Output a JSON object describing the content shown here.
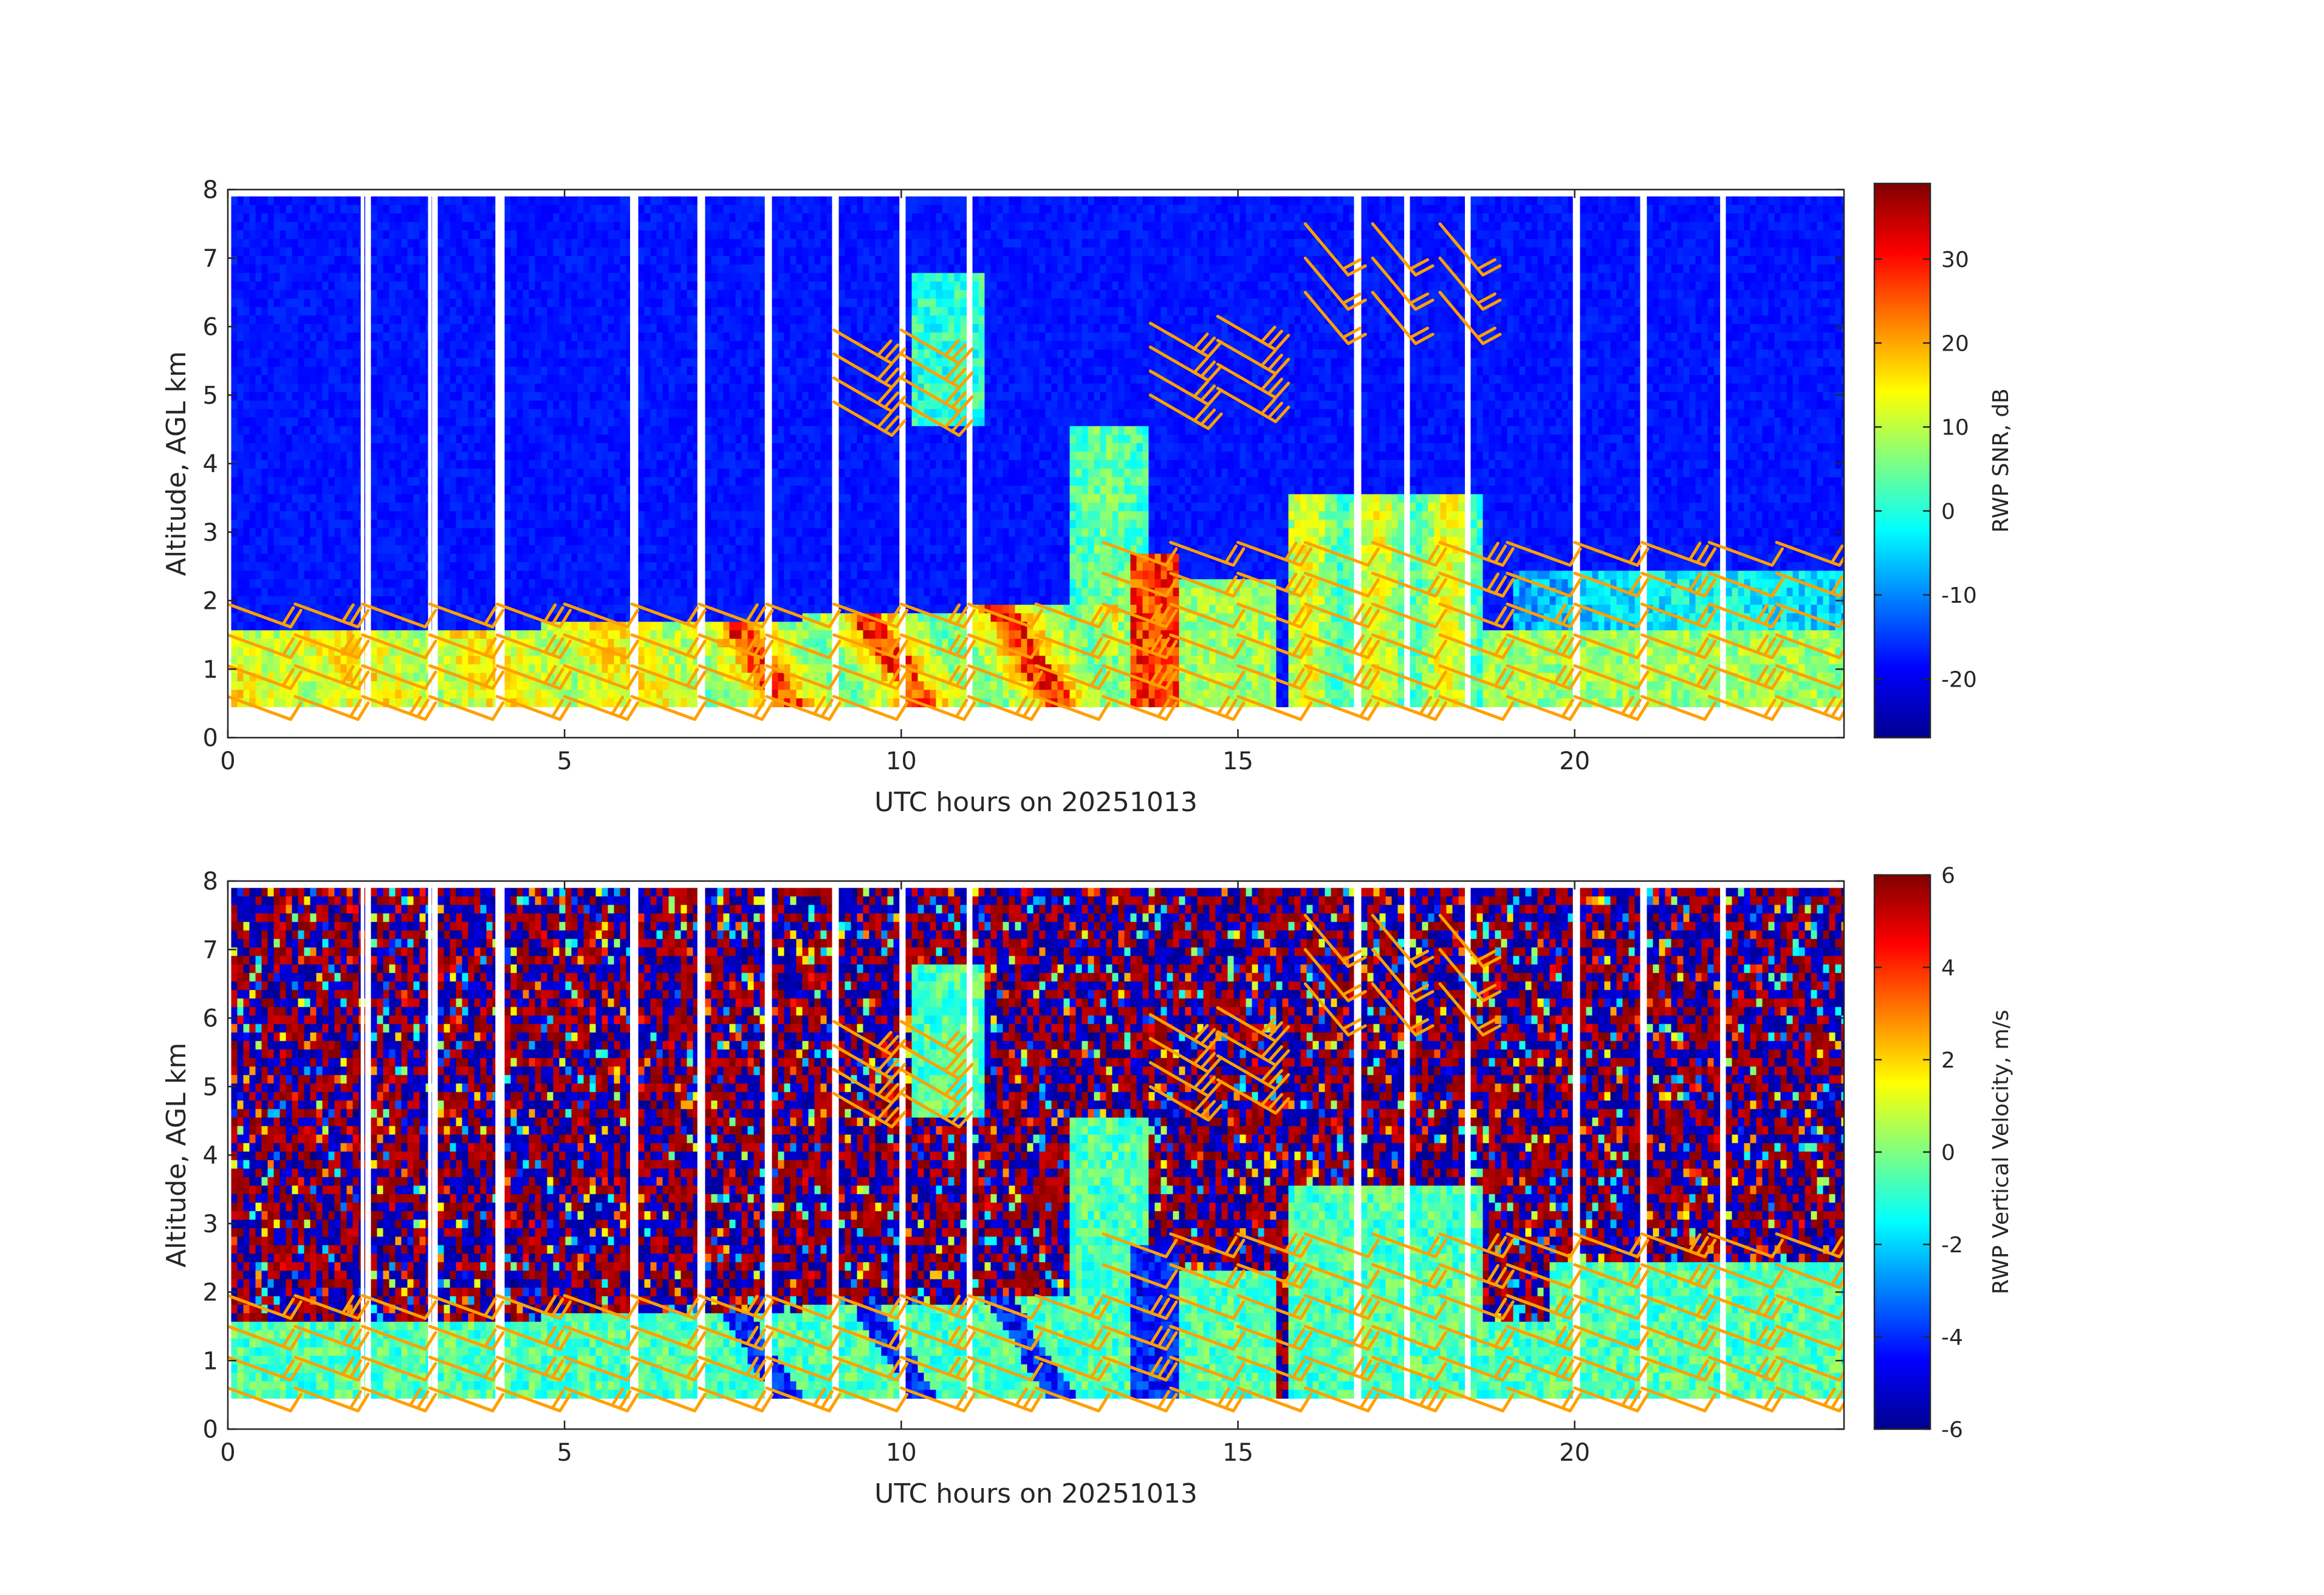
{
  "figure": {
    "background": "#ffffff",
    "barb_color": "#ffa000",
    "gap_color": "#ffffff",
    "colormap": "jet"
  },
  "chart_data": [
    {
      "type": "heatmap",
      "title": "",
      "xlabel": "UTC hours on 20251013",
      "ylabel": "Altitude, AGL km",
      "xlim": [
        0,
        24
      ],
      "ylim": [
        0,
        8
      ],
      "x_ticks": [
        "0",
        "5",
        "10",
        "15",
        "20"
      ],
      "y_ticks": [
        "0",
        "1",
        "2",
        "3",
        "4",
        "5",
        "6",
        "7",
        "8"
      ],
      "colorbar": {
        "label": "RWP SNR, dB",
        "range": [
          -27,
          39
        ],
        "ticks": [
          "-20",
          "-10",
          "0",
          "10",
          "20",
          "30"
        ]
      },
      "data_extent": {
        "x": [
          0.05,
          24
        ],
        "y": [
          0.5,
          7.9
        ]
      },
      "field": "snr",
      "gaps_hours": [
        2.0,
        3.0,
        4.0,
        6.0,
        7.0,
        8.0,
        9.0,
        10.0,
        11.0,
        16.75,
        17.5,
        18.4,
        20.0,
        21.0,
        22.2
      ],
      "barbs": "wind-barbs"
    },
    {
      "type": "heatmap",
      "title": "",
      "xlabel": "UTC hours on 20251013",
      "ylabel": "Altitude, AGL km",
      "xlim": [
        0,
        24
      ],
      "ylim": [
        0,
        8
      ],
      "x_ticks": [
        "0",
        "5",
        "10",
        "15",
        "20"
      ],
      "y_ticks": [
        "0",
        "1",
        "2",
        "3",
        "4",
        "5",
        "6",
        "7",
        "8"
      ],
      "colorbar": {
        "label": "RWP Vertical Velocity, m/s",
        "range": [
          -6,
          6
        ],
        "ticks": [
          "-6",
          "-4",
          "-2",
          "0",
          "2",
          "4",
          "6"
        ]
      },
      "data_extent": {
        "x": [
          0.05,
          24
        ],
        "y": [
          0.5,
          7.9
        ]
      },
      "field": "vertical_velocity",
      "gaps_hours": [
        2.0,
        3.0,
        4.0,
        6.0,
        7.0,
        8.0,
        9.0,
        10.0,
        11.0,
        16.75,
        17.5,
        18.4,
        20.0,
        21.0,
        22.2
      ],
      "barbs": "wind-barbs"
    }
  ]
}
